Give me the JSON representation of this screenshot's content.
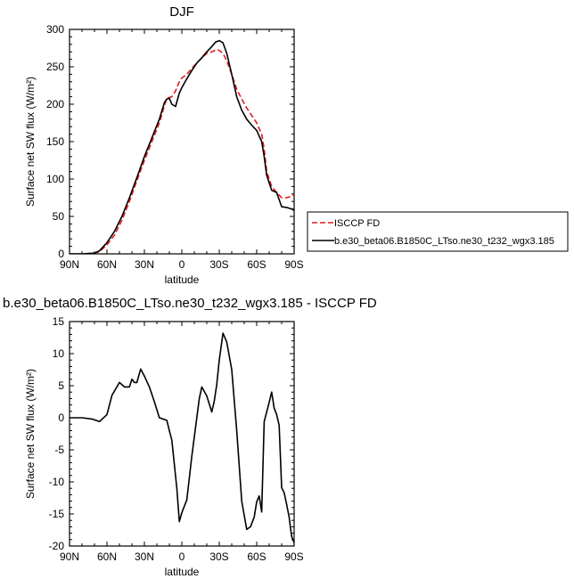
{
  "chart_data": [
    {
      "type": "line",
      "title": "DJF",
      "xlabel": "latitude",
      "ylabel": "Surface net SW flux (W/m²)",
      "x_range": [
        -90,
        90
      ],
      "ylim": [
        0,
        300
      ],
      "x_ticks": [
        -90,
        -60,
        -30,
        0,
        30,
        60,
        90
      ],
      "x_tick_labels": [
        "90N",
        "60N",
        "30N",
        "0",
        "30S",
        "60S",
        "90S"
      ],
      "y_ticks": [
        0,
        50,
        100,
        150,
        200,
        250,
        300
      ],
      "y_tick_labels": [
        "0",
        "50",
        "100",
        "150",
        "200",
        "250",
        "300"
      ],
      "legend_position": "right",
      "series": [
        {
          "name": "ISCCP FD",
          "color": "#e41a1c",
          "dash": true,
          "x": [
            -90,
            -80,
            -70,
            -66,
            -60,
            -54,
            -48,
            -42,
            -36,
            -30,
            -24,
            -18,
            -14,
            -12,
            -8,
            -5,
            -2,
            0,
            4,
            8,
            12,
            16,
            20,
            24,
            28,
            30,
            33,
            36,
            40,
            44,
            48,
            52,
            56,
            60,
            64,
            66,
            68,
            72,
            76,
            80,
            84,
            88,
            90
          ],
          "y": [
            0,
            0,
            1,
            3,
            12,
            25,
            45,
            70,
            98,
            125,
            150,
            175,
            198,
            208,
            210,
            218,
            230,
            235,
            240,
            248,
            255,
            262,
            268,
            270,
            273,
            272,
            268,
            258,
            240,
            220,
            207,
            195,
            185,
            175,
            160,
            140,
            110,
            90,
            82,
            75,
            75,
            77,
            79
          ]
        },
        {
          "name": "b.e30_beta06.B1850C_LTso.ne30_t232_wgx3.185",
          "color": "#000000",
          "dash": false,
          "x": [
            -90,
            -80,
            -70,
            -66,
            -60,
            -54,
            -48,
            -42,
            -36,
            -30,
            -24,
            -18,
            -14,
            -12,
            -10,
            -8,
            -5,
            -2,
            0,
            4,
            8,
            12,
            16,
            20,
            24,
            27,
            30,
            33,
            36,
            40,
            44,
            48,
            52,
            56,
            60,
            64,
            66,
            68,
            72,
            76,
            80,
            84,
            88,
            90
          ],
          "y": [
            0,
            0,
            1,
            4,
            15,
            30,
            50,
            75,
            102,
            130,
            155,
            180,
            202,
            207,
            208,
            200,
            197,
            215,
            222,
            234,
            245,
            255,
            262,
            270,
            277,
            283,
            285,
            282,
            268,
            240,
            210,
            192,
            180,
            172,
            165,
            150,
            130,
            105,
            85,
            82,
            63,
            62,
            60,
            58
          ]
        }
      ]
    },
    {
      "type": "line",
      "title": "b.e30_beta06.B1850C_LTso.ne30_t232_wgx3.185 - ISCCP FD",
      "xlabel": "latitude",
      "ylabel": "Surface net SW flux (W/m²)",
      "x_range": [
        -90,
        90
      ],
      "ylim": [
        -20,
        15
      ],
      "x_ticks": [
        -90,
        -60,
        -30,
        0,
        30,
        60,
        90
      ],
      "x_tick_labels": [
        "90N",
        "60N",
        "30N",
        "0",
        "30S",
        "60S",
        "90S"
      ],
      "y_ticks": [
        -20,
        -15,
        -10,
        -5,
        0,
        5,
        10,
        15
      ],
      "y_tick_labels": [
        "-20",
        "-15",
        "-10",
        "-5",
        "0",
        "5",
        "10",
        "15"
      ],
      "series": [
        {
          "color": "#000000",
          "dash": false,
          "x": [
            -90,
            -80,
            -72,
            -66,
            -60,
            -56,
            -50,
            -46,
            -42,
            -40,
            -38,
            -36,
            -33,
            -30,
            -26,
            -22,
            -18,
            -12,
            -10,
            -8,
            -4,
            -2,
            0,
            4,
            8,
            12,
            14,
            16,
            20,
            24,
            26,
            28,
            30,
            33,
            36,
            40,
            44,
            48,
            52,
            55,
            58,
            60,
            62,
            64,
            66,
            68,
            70,
            72,
            74,
            76,
            78,
            80,
            82,
            84,
            86,
            88,
            90
          ],
          "y": [
            0,
            0,
            -0.2,
            -0.6,
            0.5,
            3.5,
            5.5,
            4.8,
            4.8,
            6,
            5.5,
            5.5,
            7.6,
            6.5,
            4.8,
            2.5,
            0,
            -0.4,
            -2,
            -3.5,
            -11,
            -16.2,
            -14.8,
            -12.8,
            -6,
            0,
            3,
            4.8,
            3.4,
            0.9,
            2.6,
            5.2,
            9,
            13.2,
            11.8,
            7.5,
            -2,
            -13,
            -17.4,
            -17,
            -15.5,
            -13.1,
            -12.2,
            -14.7,
            -0.6,
            0.9,
            2.4,
            4,
            1.5,
            0.5,
            -1.2,
            -10.9,
            -11.7,
            -13.5,
            -15.5,
            -18.5,
            -19.5
          ]
        }
      ]
    }
  ]
}
